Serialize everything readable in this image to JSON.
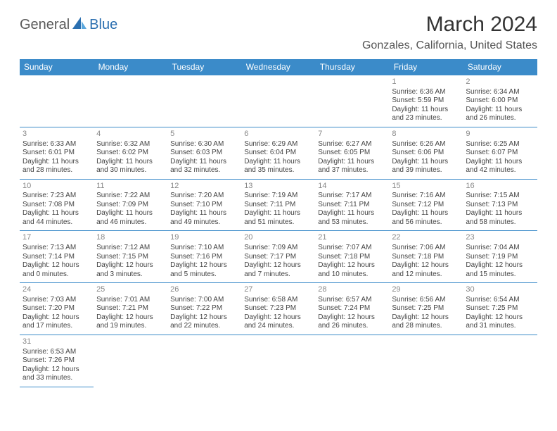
{
  "logo": {
    "text1": "General",
    "text2": "Blue"
  },
  "title": "March 2024",
  "location": "Gonzales, California, United States",
  "header_bg": "#3b8bc9",
  "header_fg": "#ffffff",
  "border_color": "#3b8bc9",
  "weekdays": [
    "Sunday",
    "Monday",
    "Tuesday",
    "Wednesday",
    "Thursday",
    "Friday",
    "Saturday"
  ],
  "weeks": [
    [
      null,
      null,
      null,
      null,
      null,
      {
        "n": "1",
        "sr": "Sunrise: 6:36 AM",
        "ss": "Sunset: 5:59 PM",
        "d1": "Daylight: 11 hours",
        "d2": "and 23 minutes."
      },
      {
        "n": "2",
        "sr": "Sunrise: 6:34 AM",
        "ss": "Sunset: 6:00 PM",
        "d1": "Daylight: 11 hours",
        "d2": "and 26 minutes."
      }
    ],
    [
      {
        "n": "3",
        "sr": "Sunrise: 6:33 AM",
        "ss": "Sunset: 6:01 PM",
        "d1": "Daylight: 11 hours",
        "d2": "and 28 minutes."
      },
      {
        "n": "4",
        "sr": "Sunrise: 6:32 AM",
        "ss": "Sunset: 6:02 PM",
        "d1": "Daylight: 11 hours",
        "d2": "and 30 minutes."
      },
      {
        "n": "5",
        "sr": "Sunrise: 6:30 AM",
        "ss": "Sunset: 6:03 PM",
        "d1": "Daylight: 11 hours",
        "d2": "and 32 minutes."
      },
      {
        "n": "6",
        "sr": "Sunrise: 6:29 AM",
        "ss": "Sunset: 6:04 PM",
        "d1": "Daylight: 11 hours",
        "d2": "and 35 minutes."
      },
      {
        "n": "7",
        "sr": "Sunrise: 6:27 AM",
        "ss": "Sunset: 6:05 PM",
        "d1": "Daylight: 11 hours",
        "d2": "and 37 minutes."
      },
      {
        "n": "8",
        "sr": "Sunrise: 6:26 AM",
        "ss": "Sunset: 6:06 PM",
        "d1": "Daylight: 11 hours",
        "d2": "and 39 minutes."
      },
      {
        "n": "9",
        "sr": "Sunrise: 6:25 AM",
        "ss": "Sunset: 6:07 PM",
        "d1": "Daylight: 11 hours",
        "d2": "and 42 minutes."
      }
    ],
    [
      {
        "n": "10",
        "sr": "Sunrise: 7:23 AM",
        "ss": "Sunset: 7:08 PM",
        "d1": "Daylight: 11 hours",
        "d2": "and 44 minutes."
      },
      {
        "n": "11",
        "sr": "Sunrise: 7:22 AM",
        "ss": "Sunset: 7:09 PM",
        "d1": "Daylight: 11 hours",
        "d2": "and 46 minutes."
      },
      {
        "n": "12",
        "sr": "Sunrise: 7:20 AM",
        "ss": "Sunset: 7:10 PM",
        "d1": "Daylight: 11 hours",
        "d2": "and 49 minutes."
      },
      {
        "n": "13",
        "sr": "Sunrise: 7:19 AM",
        "ss": "Sunset: 7:11 PM",
        "d1": "Daylight: 11 hours",
        "d2": "and 51 minutes."
      },
      {
        "n": "14",
        "sr": "Sunrise: 7:17 AM",
        "ss": "Sunset: 7:11 PM",
        "d1": "Daylight: 11 hours",
        "d2": "and 53 minutes."
      },
      {
        "n": "15",
        "sr": "Sunrise: 7:16 AM",
        "ss": "Sunset: 7:12 PM",
        "d1": "Daylight: 11 hours",
        "d2": "and 56 minutes."
      },
      {
        "n": "16",
        "sr": "Sunrise: 7:15 AM",
        "ss": "Sunset: 7:13 PM",
        "d1": "Daylight: 11 hours",
        "d2": "and 58 minutes."
      }
    ],
    [
      {
        "n": "17",
        "sr": "Sunrise: 7:13 AM",
        "ss": "Sunset: 7:14 PM",
        "d1": "Daylight: 12 hours",
        "d2": "and 0 minutes."
      },
      {
        "n": "18",
        "sr": "Sunrise: 7:12 AM",
        "ss": "Sunset: 7:15 PM",
        "d1": "Daylight: 12 hours",
        "d2": "and 3 minutes."
      },
      {
        "n": "19",
        "sr": "Sunrise: 7:10 AM",
        "ss": "Sunset: 7:16 PM",
        "d1": "Daylight: 12 hours",
        "d2": "and 5 minutes."
      },
      {
        "n": "20",
        "sr": "Sunrise: 7:09 AM",
        "ss": "Sunset: 7:17 PM",
        "d1": "Daylight: 12 hours",
        "d2": "and 7 minutes."
      },
      {
        "n": "21",
        "sr": "Sunrise: 7:07 AM",
        "ss": "Sunset: 7:18 PM",
        "d1": "Daylight: 12 hours",
        "d2": "and 10 minutes."
      },
      {
        "n": "22",
        "sr": "Sunrise: 7:06 AM",
        "ss": "Sunset: 7:18 PM",
        "d1": "Daylight: 12 hours",
        "d2": "and 12 minutes."
      },
      {
        "n": "23",
        "sr": "Sunrise: 7:04 AM",
        "ss": "Sunset: 7:19 PM",
        "d1": "Daylight: 12 hours",
        "d2": "and 15 minutes."
      }
    ],
    [
      {
        "n": "24",
        "sr": "Sunrise: 7:03 AM",
        "ss": "Sunset: 7:20 PM",
        "d1": "Daylight: 12 hours",
        "d2": "and 17 minutes."
      },
      {
        "n": "25",
        "sr": "Sunrise: 7:01 AM",
        "ss": "Sunset: 7:21 PM",
        "d1": "Daylight: 12 hours",
        "d2": "and 19 minutes."
      },
      {
        "n": "26",
        "sr": "Sunrise: 7:00 AM",
        "ss": "Sunset: 7:22 PM",
        "d1": "Daylight: 12 hours",
        "d2": "and 22 minutes."
      },
      {
        "n": "27",
        "sr": "Sunrise: 6:58 AM",
        "ss": "Sunset: 7:23 PM",
        "d1": "Daylight: 12 hours",
        "d2": "and 24 minutes."
      },
      {
        "n": "28",
        "sr": "Sunrise: 6:57 AM",
        "ss": "Sunset: 7:24 PM",
        "d1": "Daylight: 12 hours",
        "d2": "and 26 minutes."
      },
      {
        "n": "29",
        "sr": "Sunrise: 6:56 AM",
        "ss": "Sunset: 7:25 PM",
        "d1": "Daylight: 12 hours",
        "d2": "and 28 minutes."
      },
      {
        "n": "30",
        "sr": "Sunrise: 6:54 AM",
        "ss": "Sunset: 7:25 PM",
        "d1": "Daylight: 12 hours",
        "d2": "and 31 minutes."
      }
    ],
    [
      {
        "n": "31",
        "sr": "Sunrise: 6:53 AM",
        "ss": "Sunset: 7:26 PM",
        "d1": "Daylight: 12 hours",
        "d2": "and 33 minutes."
      },
      null,
      null,
      null,
      null,
      null,
      null
    ]
  ]
}
